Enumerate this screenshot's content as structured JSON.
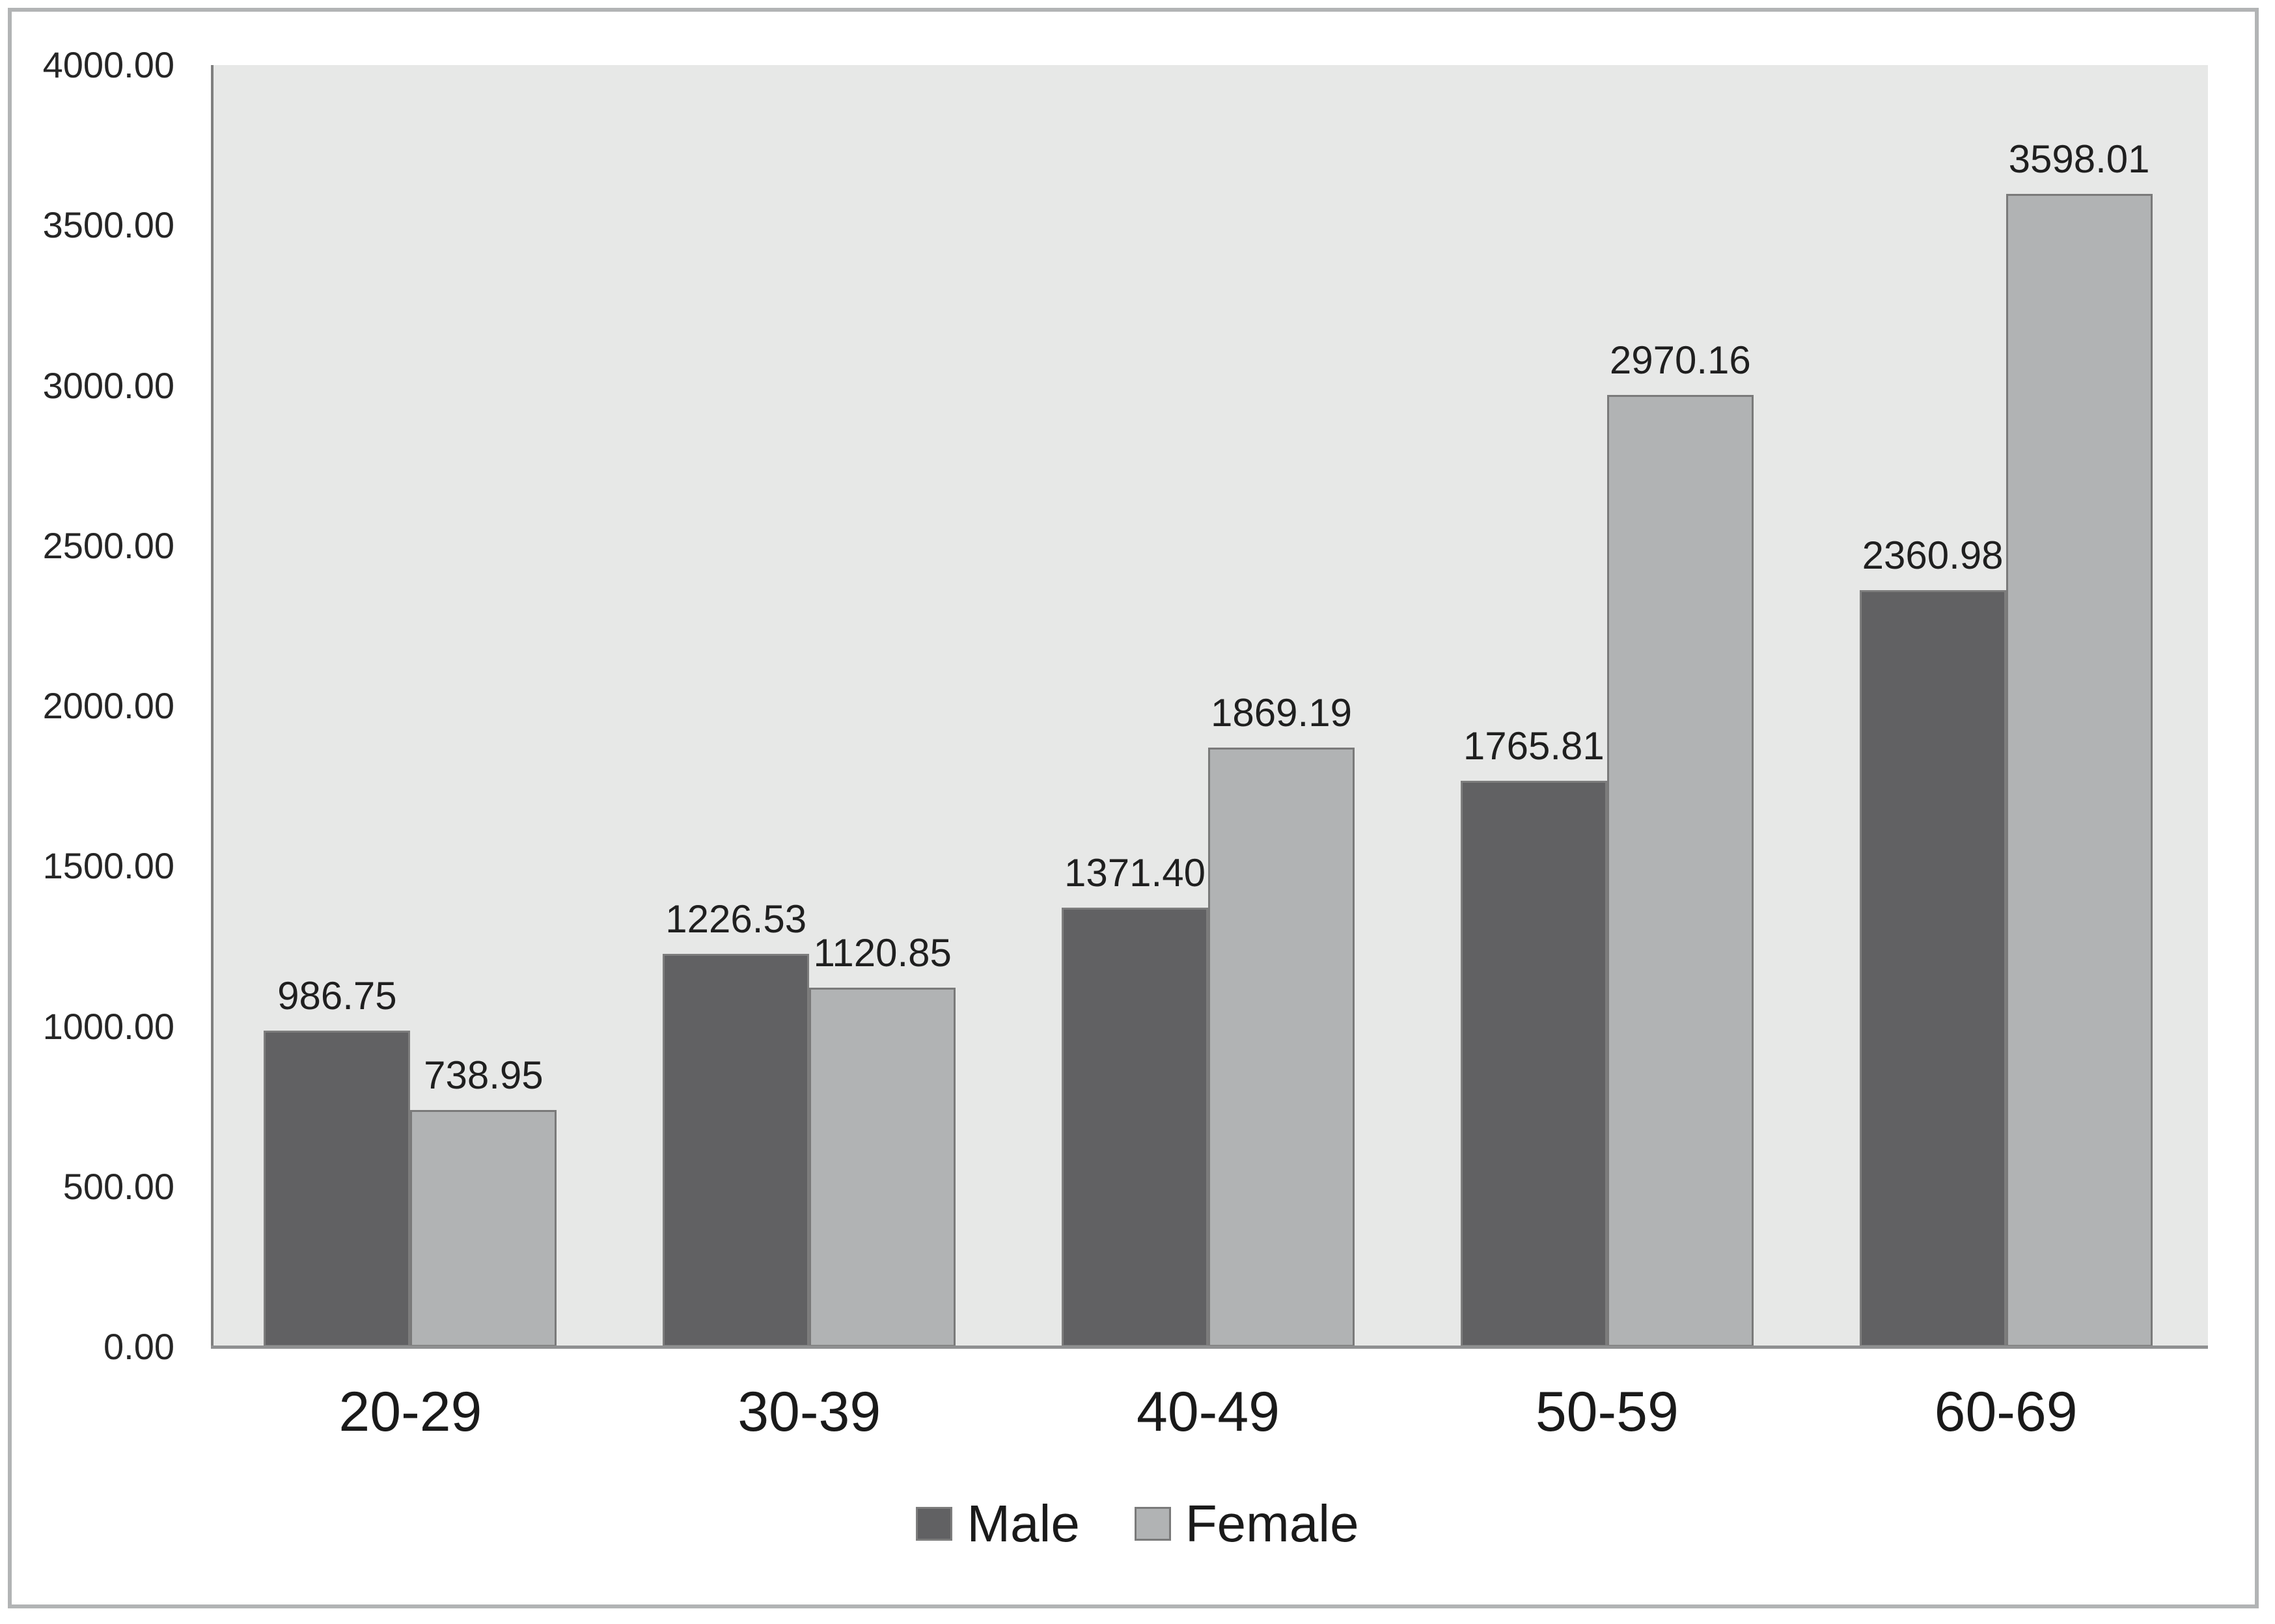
{
  "chart_data": {
    "type": "bar",
    "title": "",
    "xlabel": "",
    "ylabel": "",
    "categories": [
      "20-29",
      "30-39",
      "40-49",
      "50-59",
      "60-69"
    ],
    "series": [
      {
        "name": "Male",
        "values": [
          986.75,
          1226.53,
          1371.4,
          1765.81,
          2360.98
        ],
        "value_labels": [
          "986.75",
          "1226.53",
          "1371.40",
          "1765.81",
          "2360.98"
        ],
        "fill_color": "#616163",
        "border_color": "#7d7d7d"
      },
      {
        "name": "Female",
        "values": [
          738.95,
          1120.85,
          1869.19,
          2970.16,
          3598.01
        ],
        "value_labels": [
          "738.95",
          "1120.85",
          "1869.19",
          "2970.16",
          "3598.01"
        ],
        "fill_color": "#b1b3b4",
        "border_color": "#7a7a7a"
      }
    ],
    "ylim": [
      0,
      4000
    ],
    "ytick_interval": 500,
    "ytick_labels": [
      "0.00",
      "500.00",
      "1000.00",
      "1500.00",
      "2000.00",
      "2500.00",
      "3000.00",
      "3500.00",
      "4000.00"
    ],
    "grid": false,
    "data_labels_shown": true,
    "legend_position": "bottom",
    "plot_background_color": "#e7e8e7",
    "axis_line_color": "#7f7f7f",
    "figure_border_color": "#b2b4b5"
  }
}
